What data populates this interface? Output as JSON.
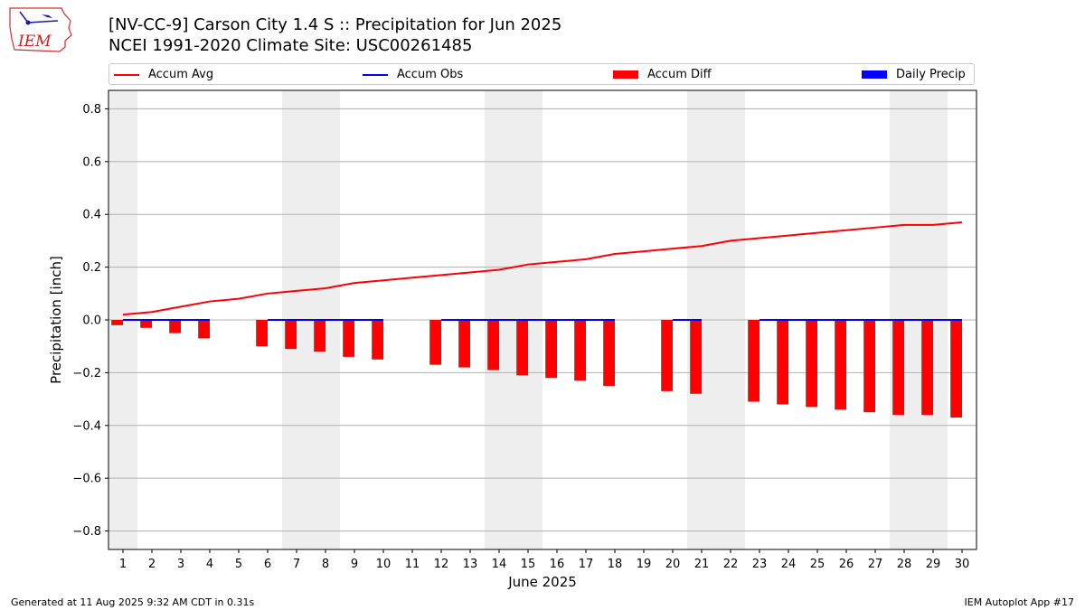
{
  "title_line1": "[NV-CC-9] Carson City 1.4 S :: Precipitation for Jun 2025",
  "title_line2": "NCEI 1991-2020 Climate Site: USC00261485",
  "logo_text": "IEM",
  "footer_left": "Generated at 11 Aug 2025 9:32 AM CDT in 0.31s",
  "footer_right": "IEM Autoplot App #17",
  "colors": {
    "accum_avg": "#ff0000",
    "accum_obs": "#0000ff",
    "accum_diff": "#ff0000",
    "daily_precip": "#0000ff",
    "weekend_band": "#eeeeee",
    "grid": "#b0b0b0"
  },
  "chart_data": {
    "type": "bar",
    "xlabel": "June 2025",
    "ylabel": "Precipitation [inch]",
    "xlim": [
      0.5,
      30.5
    ],
    "ylim": [
      -0.87,
      0.87
    ],
    "yticks": [
      -0.8,
      -0.6,
      -0.4,
      -0.2,
      0.0,
      0.2,
      0.4,
      0.6,
      0.8
    ],
    "ytick_labels": [
      "−0.8",
      "−0.6",
      "−0.4",
      "−0.2",
      "0.0",
      "0.2",
      "0.4",
      "0.6",
      "0.8"
    ],
    "x": [
      1,
      2,
      3,
      4,
      5,
      6,
      7,
      8,
      9,
      10,
      11,
      12,
      13,
      14,
      15,
      16,
      17,
      18,
      19,
      20,
      21,
      22,
      23,
      24,
      25,
      26,
      27,
      28,
      29,
      30
    ],
    "grid": "horizontal",
    "legend_position": "top",
    "weekend_bands": [
      [
        0.5,
        1.5
      ],
      [
        6.5,
        8.5
      ],
      [
        13.5,
        15.5
      ],
      [
        20.5,
        22.5
      ],
      [
        27.5,
        29.5
      ]
    ],
    "legend": [
      "Accum Avg",
      "Accum Obs",
      "Accum Diff",
      "Daily Precip"
    ],
    "series": [
      {
        "name": "Accum Avg",
        "type": "line",
        "x": [
          1,
          2,
          3,
          4,
          5,
          6,
          7,
          8,
          9,
          10,
          11,
          12,
          13,
          14,
          15,
          16,
          17,
          18,
          19,
          20,
          21,
          22,
          23,
          24,
          25,
          26,
          27,
          28,
          29,
          30
        ],
        "values": [
          0.02,
          0.03,
          0.05,
          0.07,
          0.08,
          0.1,
          0.11,
          0.12,
          0.14,
          0.15,
          0.16,
          0.17,
          0.18,
          0.19,
          0.21,
          0.22,
          0.23,
          0.25,
          0.26,
          0.27,
          0.28,
          0.3,
          0.31,
          0.32,
          0.33,
          0.34,
          0.35,
          0.36,
          0.36,
          0.37
        ]
      },
      {
        "name": "Accum Obs",
        "type": "line",
        "segments": [
          {
            "x": [
              1,
              2,
              3,
              4
            ],
            "values": [
              0,
              0,
              0,
              0
            ]
          },
          {
            "x": [
              6,
              7,
              8,
              9,
              10
            ],
            "values": [
              0,
              0,
              0,
              0,
              0
            ]
          },
          {
            "x": [
              12,
              13,
              14,
              15,
              16,
              17,
              18
            ],
            "values": [
              0,
              0,
              0,
              0,
              0,
              0,
              0
            ]
          },
          {
            "x": [
              20,
              21
            ],
            "values": [
              0,
              0
            ]
          },
          {
            "x": [
              23,
              24,
              25,
              26,
              27,
              28,
              29,
              30
            ],
            "values": [
              0,
              0,
              0,
              0,
              0,
              0,
              0,
              0
            ]
          }
        ]
      },
      {
        "name": "Accum Diff",
        "type": "bar",
        "x": [
          1,
          2,
          3,
          4,
          6,
          7,
          8,
          9,
          10,
          12,
          13,
          14,
          15,
          16,
          17,
          18,
          20,
          21,
          23,
          24,
          25,
          26,
          27,
          28,
          29,
          30
        ],
        "values": [
          -0.02,
          -0.03,
          -0.05,
          -0.07,
          -0.1,
          -0.11,
          -0.12,
          -0.14,
          -0.15,
          -0.17,
          -0.18,
          -0.19,
          -0.21,
          -0.22,
          -0.23,
          -0.25,
          -0.27,
          -0.28,
          -0.31,
          -0.32,
          -0.33,
          -0.34,
          -0.35,
          -0.36,
          -0.36,
          -0.37
        ]
      },
      {
        "name": "Daily Precip",
        "type": "bar",
        "x": [],
        "values": []
      }
    ]
  }
}
